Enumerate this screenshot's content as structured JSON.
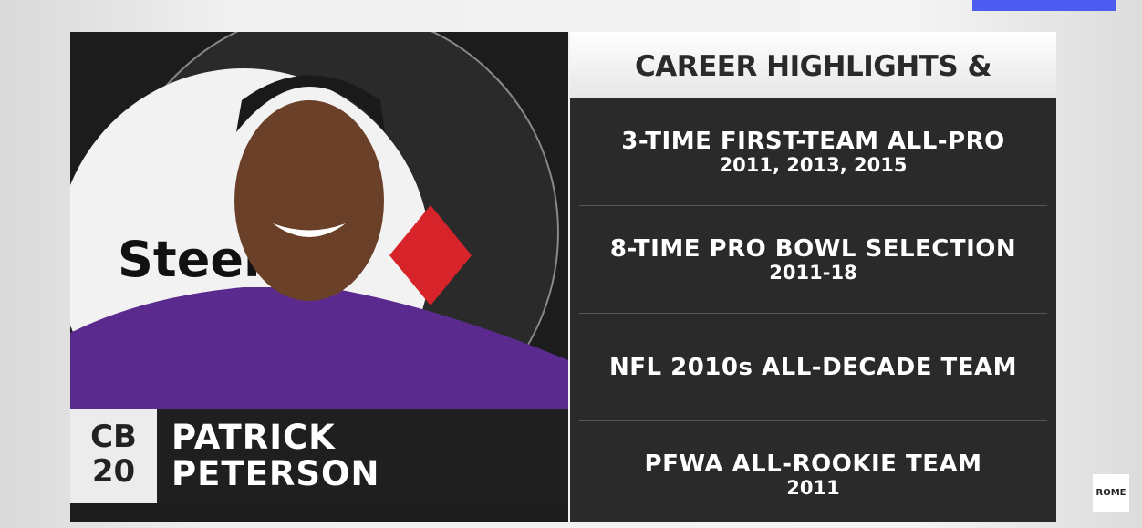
{
  "player": {
    "position": "CB",
    "number": "20",
    "first_name": "PATRICK",
    "last_name": "PETERSON",
    "logo_text": "Steele"
  },
  "panel": {
    "title": "CAREER HIGHLIGHTS & AWARDS",
    "items": [
      {
        "title": "3-TIME FIRST-TEAM ALL-PRO",
        "detail": "2011, 2013, 2015"
      },
      {
        "title": "8-TIME PRO BOWL SELECTION",
        "detail": "2011-18"
      },
      {
        "title": "NFL 2010s ALL-DECADE TEAM"
      },
      {
        "title": "PFWA ALL-ROOKIE TEAM",
        "detail": "2011"
      }
    ]
  },
  "watermark": "ROME"
}
